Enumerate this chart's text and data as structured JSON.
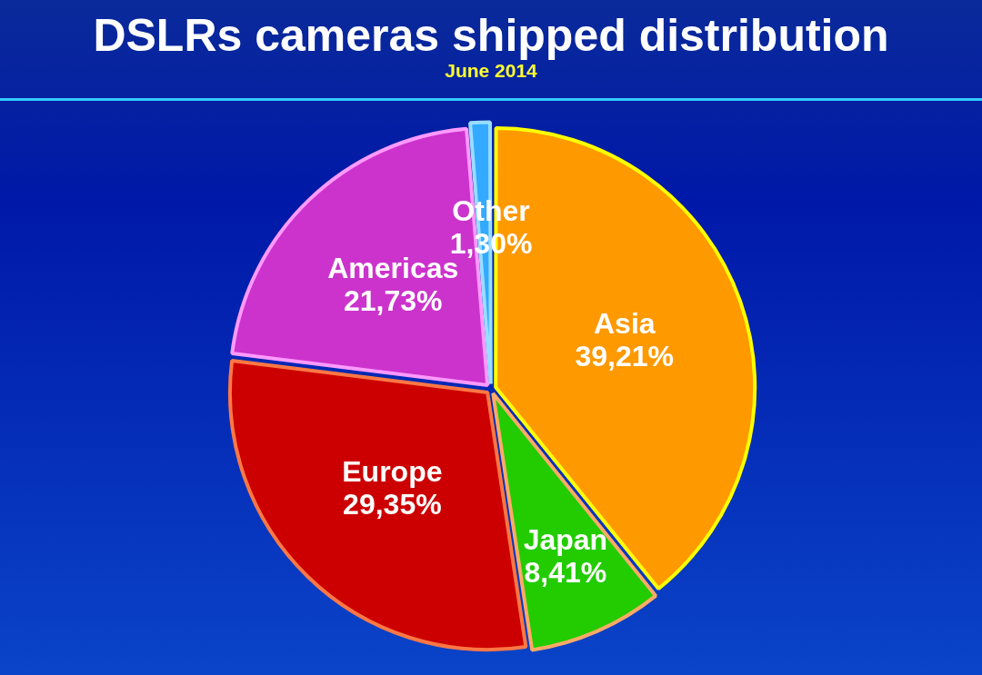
{
  "chart_data": {
    "type": "pie",
    "title": "DSLRs cameras shipped distribution",
    "subtitle": "June 2014",
    "categories": [
      "Asia",
      "Japan",
      "Europe",
      "Americas",
      "Other"
    ],
    "values": [
      39.21,
      8.41,
      29.35,
      21.73,
      1.3
    ],
    "colors": [
      "#ff9900",
      "#22cc00",
      "#cc0000",
      "#cc33cc",
      "#33aaff"
    ],
    "value_labels": [
      "39,21%",
      "8,41%",
      "29,35%",
      "21,73%",
      "1,30%"
    ],
    "legend": false
  }
}
